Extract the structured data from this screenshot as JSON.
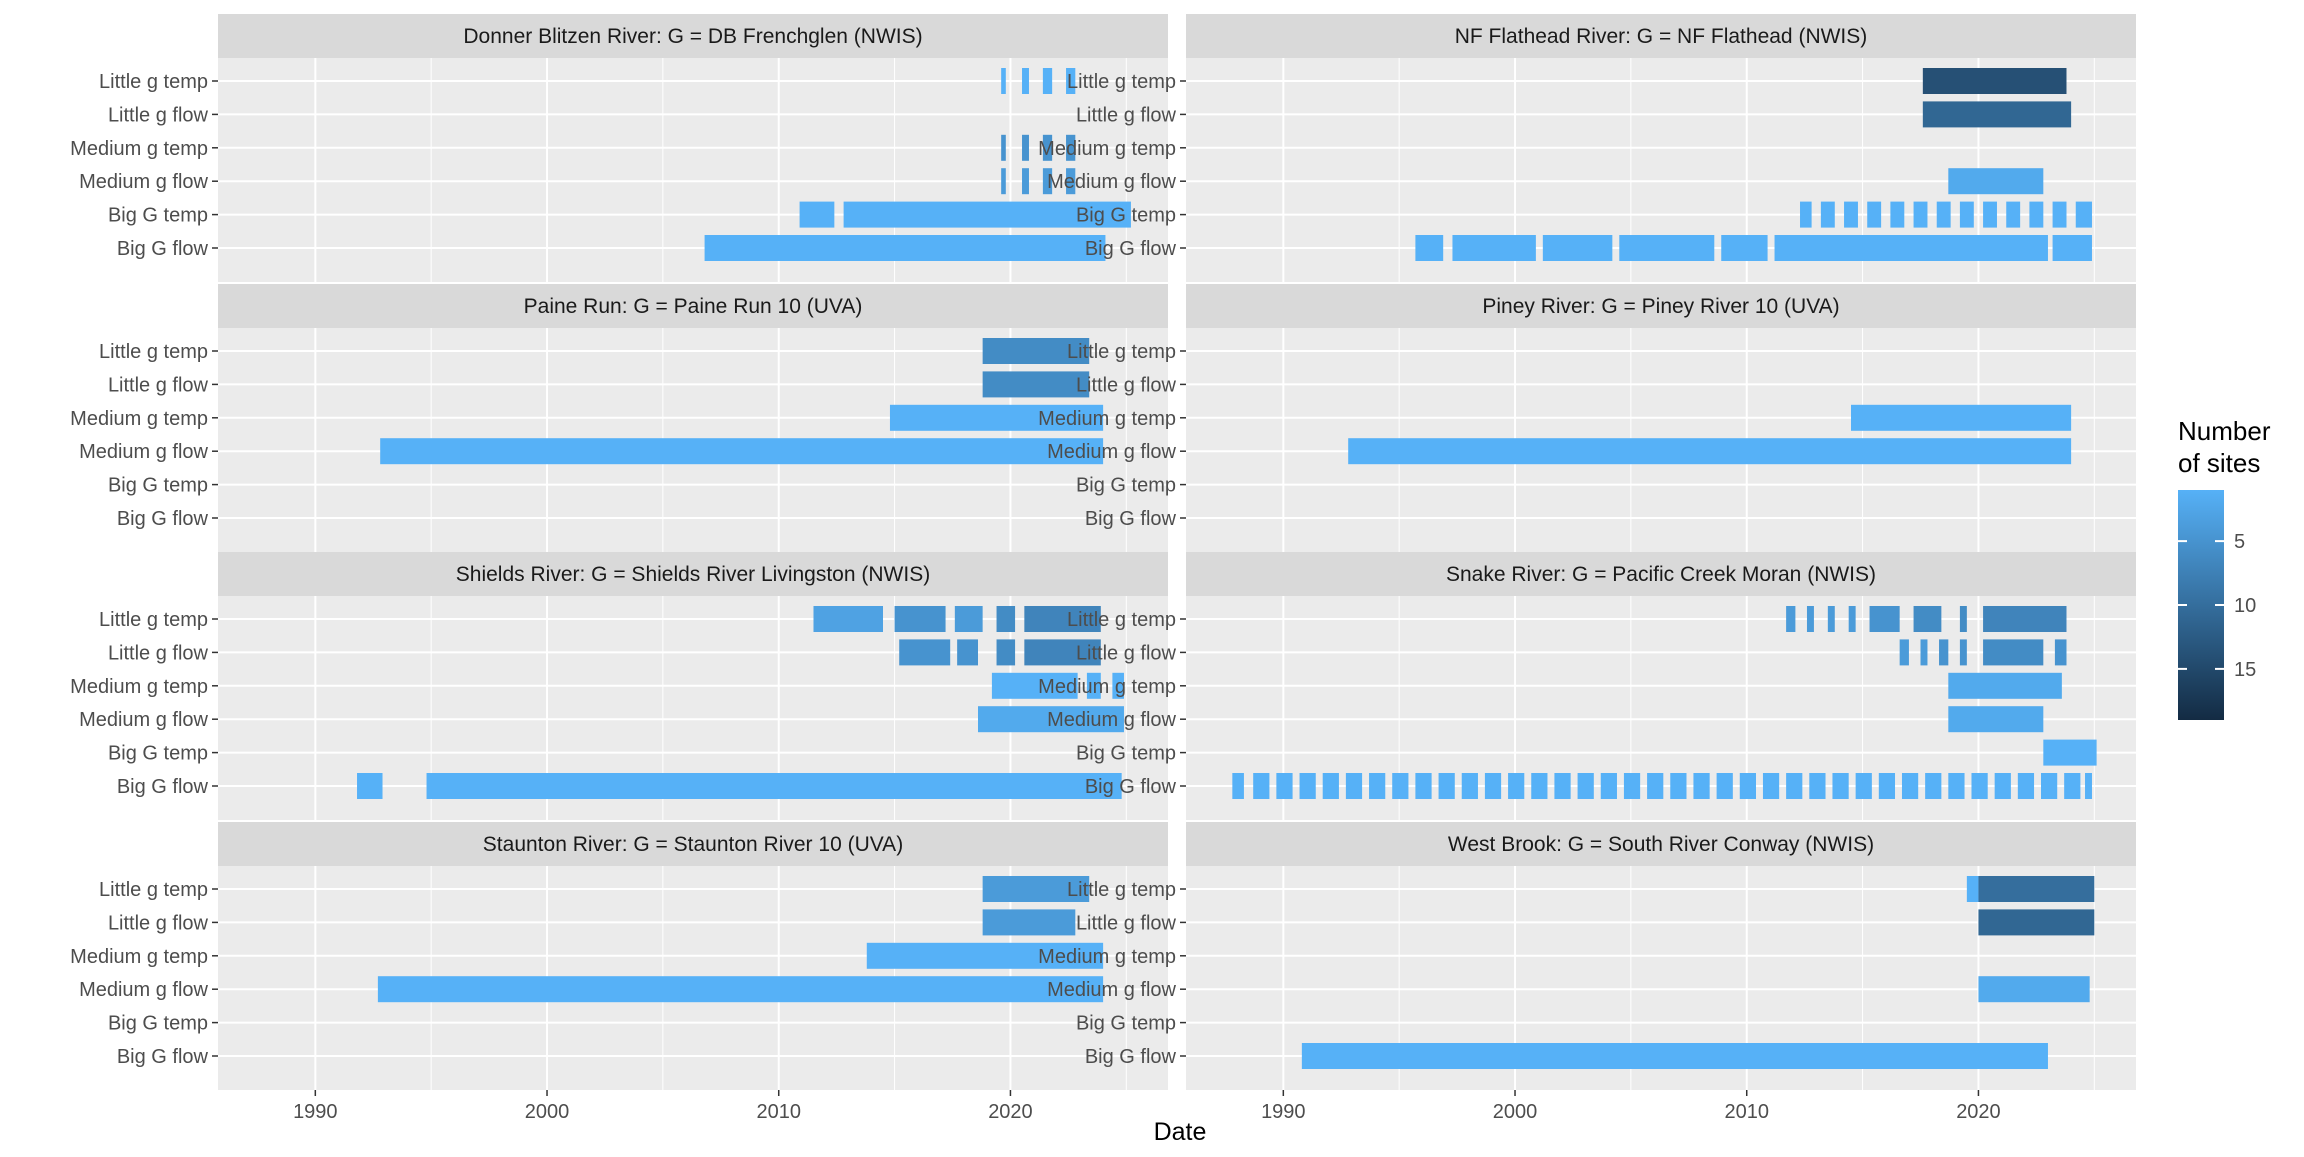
{
  "chart_data": {
    "type": "timeline",
    "xlabel": "Date",
    "xlim": [
      1985.8,
      2026.8
    ],
    "x_ticks": [
      1990,
      2000,
      2010,
      2020
    ],
    "x_tick_labels": [
      "1990",
      "2000",
      "2010",
      "2020"
    ],
    "y_categories": [
      "Little g temp",
      "Little g flow",
      "Medium g temp",
      "Medium g flow",
      "Big G temp",
      "Big G flow"
    ],
    "grid": true,
    "legend": {
      "title": "Number of sites",
      "title_lines": [
        "Number",
        "of sites"
      ],
      "position": "right",
      "min": 1,
      "max": 19,
      "ticks": [
        5,
        10,
        15
      ],
      "tick_labels": [
        "5",
        "10",
        "15"
      ],
      "low_color": "#56B1F7",
      "high_color": "#132B43"
    },
    "colors": {
      "panel_bg": "#EBEBEB",
      "strip_bg": "#D9D9D9",
      "grid": "#FFFFFF",
      "low": "#56B1F7",
      "high": "#132B43"
    },
    "panels": [
      {
        "title": "Donner Blitzen River: G = DB Frenchglen (NWIS)",
        "rows": [
          {
            "category": "Little g temp",
            "segments": [
              [
                2019.6,
                2019.8,
                1
              ],
              [
                2020.5,
                2020.8,
                1
              ],
              [
                2021.4,
                2021.8,
                1
              ],
              [
                2022.4,
                2022.8,
                1
              ]
            ]
          },
          {
            "category": "Little g flow",
            "segments": []
          },
          {
            "category": "Medium g temp",
            "segments": [
              [
                2019.6,
                2019.8,
                5
              ],
              [
                2020.5,
                2020.8,
                5
              ],
              [
                2021.4,
                2021.8,
                5
              ],
              [
                2022.4,
                2022.8,
                5
              ]
            ]
          },
          {
            "category": "Medium g flow",
            "segments": [
              [
                2019.6,
                2019.8,
                4
              ],
              [
                2020.5,
                2020.8,
                4
              ],
              [
                2021.4,
                2021.8,
                4
              ],
              [
                2022.4,
                2022.8,
                4
              ]
            ]
          },
          {
            "category": "Big G temp",
            "segments": [
              [
                2010.9,
                2012.4,
                1
              ],
              [
                2012.8,
                2025.2,
                1
              ]
            ]
          },
          {
            "category": "Big G flow",
            "segments": [
              [
                2006.8,
                2024.1,
                1
              ]
            ]
          }
        ]
      },
      {
        "title": "NF Flathead River: G = NF Flathead (NWIS)",
        "rows": [
          {
            "category": "Little g temp",
            "segments": [
              [
                2017.6,
                2023.8,
                14
              ]
            ]
          },
          {
            "category": "Little g flow",
            "segments": [
              [
                2017.6,
                2024.0,
                11
              ]
            ]
          },
          {
            "category": "Medium g temp",
            "segments": []
          },
          {
            "category": "Medium g flow",
            "segments": [
              [
                2018.7,
                2022.8,
                2
              ]
            ]
          },
          {
            "category": "Big G temp",
            "segments": [
              [
                2012.3,
                2012.8,
                1
              ],
              [
                2013.2,
                2013.8,
                1
              ],
              [
                2014.2,
                2014.8,
                1
              ],
              [
                2015.2,
                2015.8,
                1
              ],
              [
                2016.2,
                2016.8,
                1
              ],
              [
                2017.2,
                2017.8,
                1
              ],
              [
                2018.2,
                2018.8,
                1
              ],
              [
                2019.2,
                2019.8,
                1
              ],
              [
                2020.2,
                2020.8,
                1
              ],
              [
                2021.2,
                2021.8,
                1
              ],
              [
                2022.2,
                2022.8,
                1
              ],
              [
                2023.2,
                2023.8,
                1
              ],
              [
                2024.2,
                2024.9,
                1
              ]
            ]
          },
          {
            "category": "Big G flow",
            "segments": [
              [
                1995.7,
                1996.9,
                1
              ],
              [
                1997.3,
                2000.9,
                1
              ],
              [
                2001.2,
                2004.2,
                1
              ],
              [
                2004.5,
                2008.6,
                1
              ],
              [
                2008.9,
                2010.9,
                1
              ],
              [
                2011.2,
                2023.0,
                1
              ],
              [
                2023.2,
                2024.9,
                1
              ]
            ]
          }
        ]
      },
      {
        "title": "Paine Run: G = Paine Run 10 (UVA)",
        "rows": [
          {
            "category": "Little g temp",
            "segments": [
              [
                2018.8,
                2023.4,
                6
              ]
            ]
          },
          {
            "category": "Little g flow",
            "segments": [
              [
                2018.8,
                2023.4,
                6
              ]
            ]
          },
          {
            "category": "Medium g temp",
            "segments": [
              [
                2014.8,
                2024.0,
                1
              ]
            ]
          },
          {
            "category": "Medium g flow",
            "segments": [
              [
                1992.8,
                2024.0,
                1
              ]
            ]
          },
          {
            "category": "Big G temp",
            "segments": []
          },
          {
            "category": "Big G flow",
            "segments": []
          }
        ]
      },
      {
        "title": "Piney River: G = Piney River 10 (UVA)",
        "rows": [
          {
            "category": "Little g temp",
            "segments": []
          },
          {
            "category": "Little g flow",
            "segments": []
          },
          {
            "category": "Medium g temp",
            "segments": [
              [
                2014.5,
                2024.0,
                1
              ]
            ]
          },
          {
            "category": "Medium g flow",
            "segments": [
              [
                1992.8,
                2024.0,
                1
              ]
            ]
          },
          {
            "category": "Big G temp",
            "segments": []
          },
          {
            "category": "Big G flow",
            "segments": []
          }
        ]
      },
      {
        "title": "Shields River: G = Shields River Livingston (NWIS)",
        "rows": [
          {
            "category": "Little g temp",
            "segments": [
              [
                2011.5,
                2014.5,
                3
              ],
              [
                2015.0,
                2017.2,
                5
              ],
              [
                2017.6,
                2018.8,
                4
              ],
              [
                2019.4,
                2020.2,
                6
              ],
              [
                2020.6,
                2023.9,
                7
              ]
            ]
          },
          {
            "category": "Little g flow",
            "segments": [
              [
                2015.2,
                2017.4,
                5
              ],
              [
                2017.7,
                2018.6,
                5
              ],
              [
                2019.4,
                2020.2,
                6
              ],
              [
                2020.6,
                2023.9,
                7
              ]
            ]
          },
          {
            "category": "Medium g temp",
            "segments": [
              [
                2019.2,
                2022.9,
                1
              ],
              [
                2023.3,
                2023.9,
                1
              ],
              [
                2024.4,
                2024.9,
                1
              ]
            ]
          },
          {
            "category": "Medium g flow",
            "segments": [
              [
                2018.6,
                2024.9,
                2
              ]
            ]
          },
          {
            "category": "Big G temp",
            "segments": []
          },
          {
            "category": "Big G flow",
            "segments": [
              [
                1991.8,
                1992.9,
                1
              ],
              [
                1994.8,
                2024.8,
                1
              ]
            ]
          }
        ]
      },
      {
        "title": "Snake River: G = Pacific Creek Moran (NWIS)",
        "rows": [
          {
            "category": "Little g temp",
            "segments": [
              [
                2011.7,
                2012.1,
                4
              ],
              [
                2012.6,
                2012.9,
                4
              ],
              [
                2013.5,
                2013.8,
                4
              ],
              [
                2014.4,
                2014.7,
                4
              ],
              [
                2015.3,
                2016.6,
                5
              ],
              [
                2017.2,
                2018.4,
                6
              ],
              [
                2019.2,
                2019.5,
                6
              ],
              [
                2020.2,
                2023.8,
                7
              ]
            ]
          },
          {
            "category": "Little g flow",
            "segments": [
              [
                2016.6,
                2017.0,
                4
              ],
              [
                2017.5,
                2017.8,
                4
              ],
              [
                2018.3,
                2018.7,
                5
              ],
              [
                2019.2,
                2019.5,
                5
              ],
              [
                2020.2,
                2022.8,
                6
              ],
              [
                2023.3,
                2023.8,
                5
              ]
            ]
          },
          {
            "category": "Medium g temp",
            "segments": [
              [
                2018.7,
                2023.6,
                2
              ]
            ]
          },
          {
            "category": "Medium g flow",
            "segments": [
              [
                2018.7,
                2022.8,
                2
              ]
            ]
          },
          {
            "category": "Big G temp",
            "segments": [
              [
                2022.8,
                2025.1,
                1
              ]
            ]
          },
          {
            "category": "Big G flow",
            "segments": [
              [
                1987.8,
                1988.3,
                1
              ],
              [
                1988.7,
                1989.4,
                1
              ],
              [
                1989.7,
                1990.4,
                1
              ],
              [
                1990.7,
                1991.4,
                1
              ],
              [
                1991.7,
                1992.4,
                1
              ],
              [
                1992.7,
                1993.4,
                1
              ],
              [
                1993.7,
                1994.4,
                1
              ],
              [
                1994.7,
                1995.4,
                1
              ],
              [
                1995.7,
                1996.4,
                1
              ],
              [
                1996.7,
                1997.4,
                1
              ],
              [
                1997.7,
                1998.4,
                1
              ],
              [
                1998.7,
                1999.4,
                1
              ],
              [
                1999.7,
                2000.4,
                1
              ],
              [
                2000.7,
                2001.4,
                1
              ],
              [
                2001.7,
                2002.4,
                1
              ],
              [
                2002.7,
                2003.4,
                1
              ],
              [
                2003.7,
                2004.4,
                1
              ],
              [
                2004.7,
                2005.4,
                1
              ],
              [
                2005.7,
                2006.4,
                1
              ],
              [
                2006.7,
                2007.4,
                1
              ],
              [
                2007.7,
                2008.4,
                1
              ],
              [
                2008.7,
                2009.4,
                1
              ],
              [
                2009.7,
                2010.4,
                1
              ],
              [
                2010.7,
                2011.4,
                1
              ],
              [
                2011.7,
                2012.4,
                1
              ],
              [
                2012.7,
                2013.4,
                1
              ],
              [
                2013.7,
                2014.4,
                1
              ],
              [
                2014.7,
                2015.4,
                1
              ],
              [
                2015.7,
                2016.4,
                1
              ],
              [
                2016.7,
                2017.4,
                1
              ],
              [
                2017.7,
                2018.4,
                1
              ],
              [
                2018.7,
                2019.4,
                1
              ],
              [
                2019.7,
                2020.4,
                1
              ],
              [
                2020.7,
                2021.4,
                1
              ],
              [
                2021.7,
                2022.4,
                1
              ],
              [
                2022.7,
                2023.4,
                1
              ],
              [
                2023.7,
                2024.4,
                1
              ],
              [
                2024.6,
                2024.9,
                1
              ]
            ]
          }
        ]
      },
      {
        "title": "Staunton River: G = Staunton River 10 (UVA)",
        "rows": [
          {
            "category": "Little g temp",
            "segments": [
              [
                2018.8,
                2023.4,
                4
              ]
            ]
          },
          {
            "category": "Little g flow",
            "segments": [
              [
                2018.8,
                2022.8,
                4
              ]
            ]
          },
          {
            "category": "Medium g temp",
            "segments": [
              [
                2013.8,
                2024.0,
                1
              ]
            ]
          },
          {
            "category": "Medium g flow",
            "segments": [
              [
                1992.7,
                2024.0,
                1
              ]
            ]
          },
          {
            "category": "Big G temp",
            "segments": []
          },
          {
            "category": "Big G flow",
            "segments": []
          }
        ]
      },
      {
        "title": "West Brook: G = South River Conway (NWIS)",
        "rows": [
          {
            "category": "Little g temp",
            "segments": [
              [
                2019.5,
                2020.0,
                1
              ],
              [
                2020.0,
                2025.0,
                10
              ]
            ]
          },
          {
            "category": "Little g flow",
            "segments": [
              [
                2020.0,
                2025.0,
                11
              ]
            ]
          },
          {
            "category": "Medium g temp",
            "segments": []
          },
          {
            "category": "Medium g flow",
            "segments": [
              [
                2020.0,
                2024.8,
                2
              ]
            ]
          },
          {
            "category": "Big G temp",
            "segments": []
          },
          {
            "category": "Big G flow",
            "segments": [
              [
                1990.8,
                2023.0,
                1
              ]
            ]
          }
        ]
      }
    ]
  }
}
